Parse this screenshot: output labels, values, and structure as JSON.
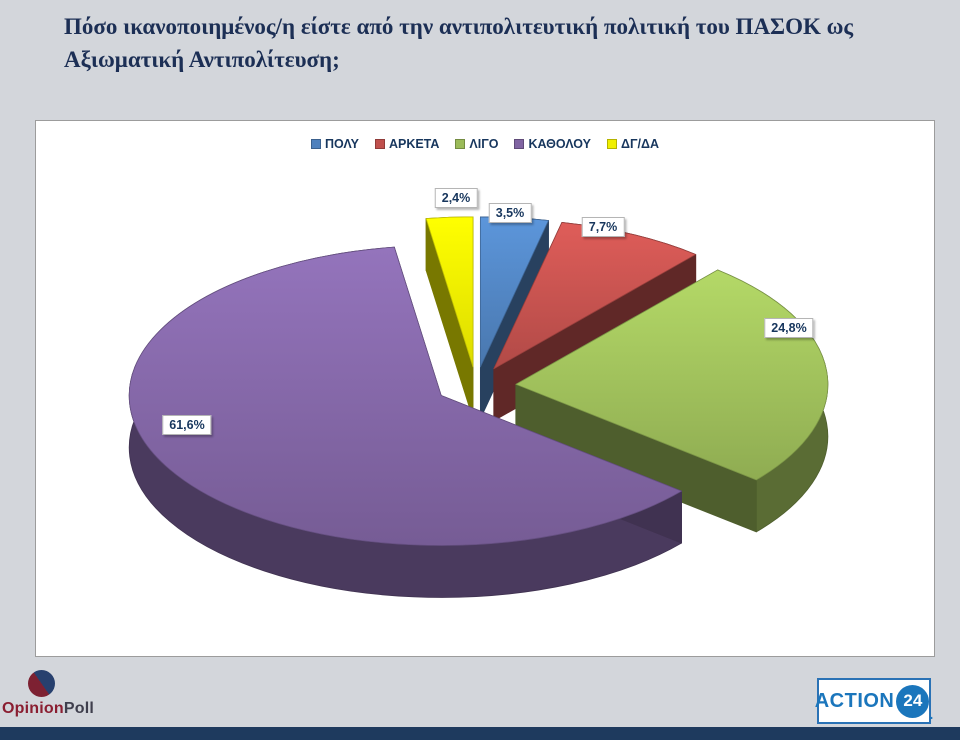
{
  "title": {
    "line1": "Πόσο ικανοποιημένος/η είστε από την αντιπολιτευτική πολιτική του ΠΑΣΟΚ ως",
    "line2": "Αξιωματική Αντιπολίτευση;"
  },
  "chart_data": {
    "type": "pie",
    "style": "3d-exploded",
    "categories": [
      "ΠΟΛΥ",
      "ΑΡΚΕΤΑ",
      "ΛΙΓΟ",
      "ΚΑΘΟΛΟΥ",
      "ΔΓ/ΔΑ"
    ],
    "values": [
      3.5,
      7.7,
      24.8,
      61.6,
      2.4
    ],
    "labels": [
      "3,5%",
      "7,7%",
      "24,8%",
      "61,6%",
      "2,4%"
    ],
    "colors": [
      "#4f81bd",
      "#c0504d",
      "#9bbb59",
      "#8064a2",
      "#f0ef00"
    ],
    "legend_position": "top",
    "start_angle": 0,
    "direction": "clockwise"
  },
  "branding": {
    "left": {
      "part1": "Opinion",
      "part2": "Poll"
    },
    "right": {
      "word": "ACTION",
      "number": "24",
      "dot": "."
    }
  }
}
